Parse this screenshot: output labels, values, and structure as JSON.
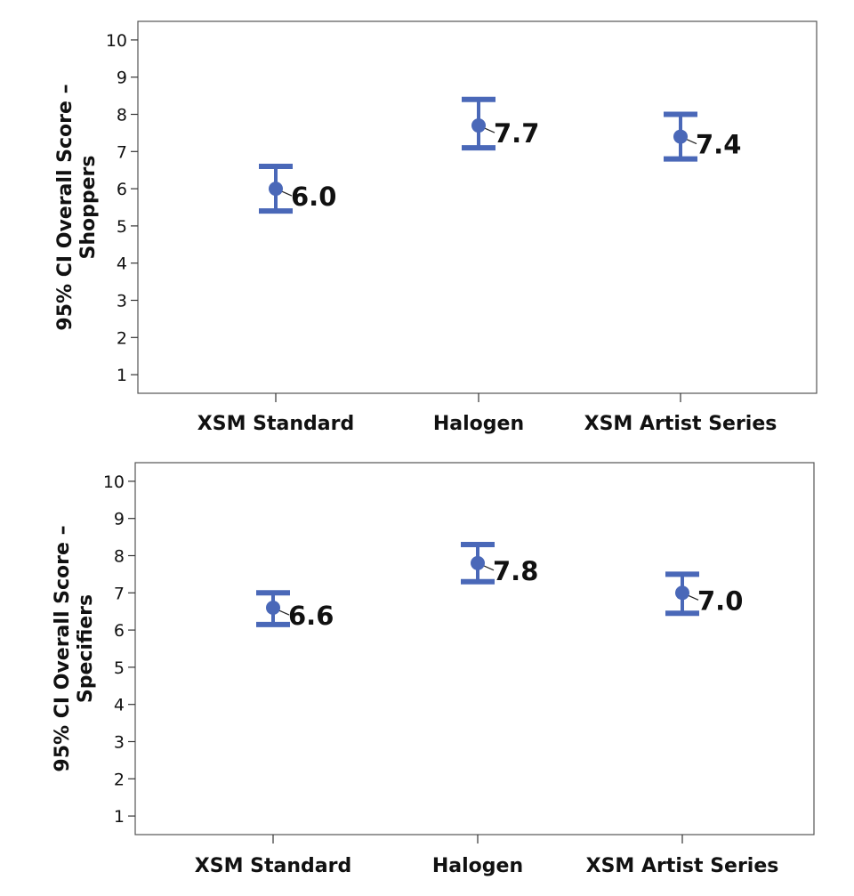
{
  "chart_data": [
    {
      "type": "errorbar",
      "ylabel_lines": [
        "95% CI Overall Score –",
        "Shoppers"
      ],
      "xlabel": "",
      "categories": [
        "XSM Standard",
        "Halogen",
        "XSM Artist Series"
      ],
      "means": [
        6.0,
        7.7,
        7.4
      ],
      "lower": [
        5.4,
        7.1,
        6.8
      ],
      "upper": [
        6.6,
        8.4,
        8.0
      ],
      "data_labels": [
        "6.0",
        "7.7",
        "7.4"
      ],
      "yticks": [
        1,
        2,
        3,
        4,
        5,
        6,
        7,
        8,
        9,
        10
      ],
      "ylim": [
        0.5,
        10.5
      ],
      "grid": false,
      "color": "#4a68b8"
    },
    {
      "type": "errorbar",
      "ylabel_lines": [
        "95% CI Overall Score –",
        "Specifiers"
      ],
      "xlabel": "",
      "categories": [
        "XSM Standard",
        "Halogen",
        "XSM Artist Series"
      ],
      "means": [
        6.6,
        7.8,
        7.0
      ],
      "lower": [
        6.15,
        7.3,
        6.45
      ],
      "upper": [
        7.0,
        8.3,
        7.5
      ],
      "data_labels": [
        "6.6",
        "7.8",
        "7.0"
      ],
      "yticks": [
        1,
        2,
        3,
        4,
        5,
        6,
        7,
        8,
        9,
        10
      ],
      "ylim": [
        0.5,
        10.5
      ],
      "grid": false,
      "color": "#4a68b8"
    }
  ]
}
